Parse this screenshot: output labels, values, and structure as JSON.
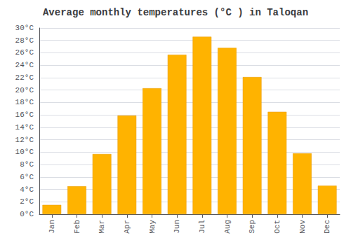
{
  "chart_data": {
    "type": "bar",
    "title": "Average monthly temperatures (°C ) in Taloqan",
    "categories": [
      "Jan",
      "Feb",
      "Mar",
      "Apr",
      "May",
      "Jun",
      "Jul",
      "Aug",
      "Sep",
      "Oct",
      "Nov",
      "Dec"
    ],
    "values": [
      1.5,
      4.5,
      9.7,
      15.9,
      20.3,
      25.7,
      28.6,
      26.8,
      22.1,
      16.5,
      9.8,
      4.6
    ],
    "color": "#FFB300",
    "ylim": [
      0,
      30
    ],
    "yticks": [
      {
        "value": 0,
        "label": "0°C"
      },
      {
        "value": 2,
        "label": "2°C"
      },
      {
        "value": 4,
        "label": "4°C"
      },
      {
        "value": 6,
        "label": "6°C"
      },
      {
        "value": 8,
        "label": "8°C"
      },
      {
        "value": 10,
        "label": "10°C"
      },
      {
        "value": 12,
        "label": "12°C"
      },
      {
        "value": 14,
        "label": "14°C"
      },
      {
        "value": 16,
        "label": "16°C"
      },
      {
        "value": 18,
        "label": "18°C"
      },
      {
        "value": 20,
        "label": "20°C"
      },
      {
        "value": 22,
        "label": "22°C"
      },
      {
        "value": 24,
        "label": "24°C"
      },
      {
        "value": 26,
        "label": "26°C"
      },
      {
        "value": 28,
        "label": "28°C"
      },
      {
        "value": 30,
        "label": "30°C"
      }
    ],
    "grid": true
  }
}
